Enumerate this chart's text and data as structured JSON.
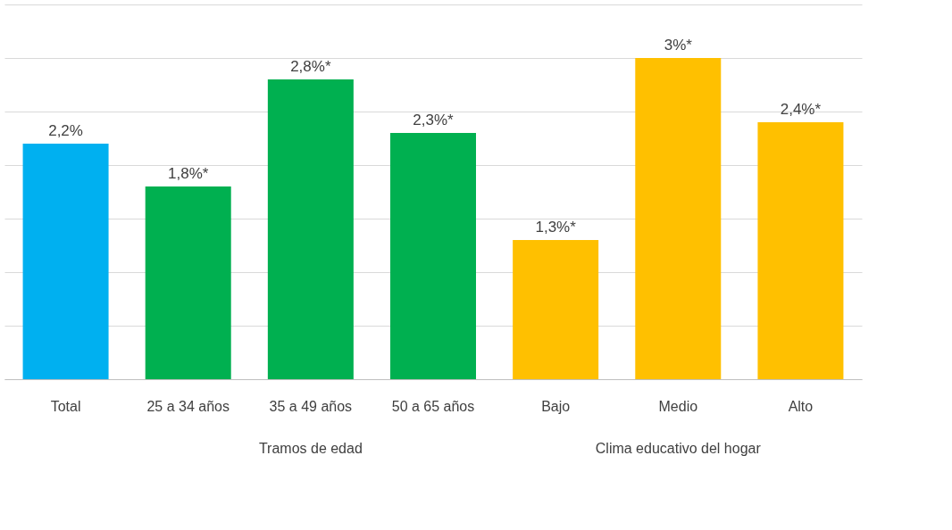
{
  "chart_data": {
    "type": "bar",
    "categories": [
      "Total",
      "25 a 34 años",
      "35 a 49 años",
      "50 a 65 años",
      "Bajo",
      "Medio",
      "Alto"
    ],
    "values": [
      2.2,
      1.8,
      2.8,
      2.3,
      1.3,
      3,
      2.4
    ],
    "colors": [
      "#00b0f0",
      "#00b050",
      "#00b050",
      "#00b050",
      "#ffc000",
      "#ffc000",
      "#ffc000"
    ],
    "value_labels": [
      "2,2%",
      "1,8%*",
      "2,8%*",
      "2,3%*",
      "1,3%*",
      "3%*",
      "2,4%*"
    ],
    "ylim": [
      0,
      3.5
    ],
    "yticks": [
      {
        "value": 0,
        "label": null
      },
      {
        "value": 0.5,
        "label": null
      },
      {
        "value": 1,
        "label": null
      },
      {
        "value": 1.5,
        "label": null
      },
      {
        "value": 2,
        "label": null
      },
      {
        "value": 2.5,
        "label": null
      },
      {
        "value": 3,
        "label": null
      },
      {
        "value": 3.5,
        "label": null
      }
    ],
    "tick_labels": "x",
    "grid": "y",
    "annotations": [
      "Tramos de edad",
      "Clima educativo del hogar"
    ]
  }
}
